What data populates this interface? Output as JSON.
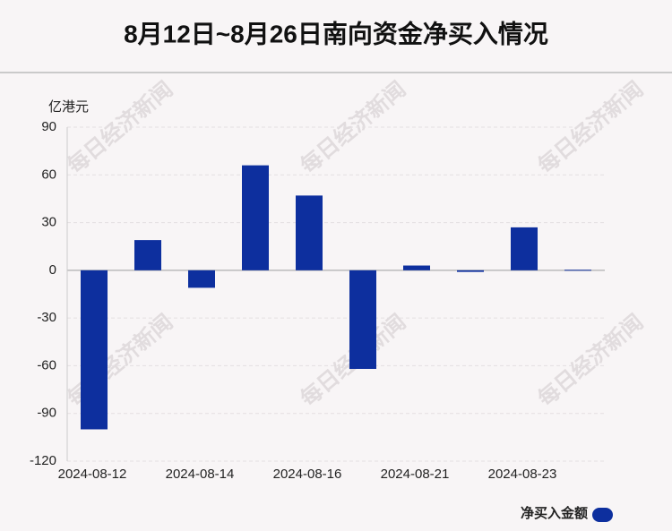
{
  "chart_data": {
    "type": "bar",
    "title": "8月12日~8月26日南向资金净买入情况",
    "y_axis_label": "亿港元",
    "watermark": "每日经济新闻",
    "categories": [
      "2024-08-12",
      null,
      "2024-08-14",
      null,
      "2024-08-16",
      null,
      "2024-08-21",
      null,
      "2024-08-23",
      null
    ],
    "series": [
      {
        "name": "净买入金额",
        "color": "#0d2f9e",
        "values": [
          -100,
          19,
          -11,
          66,
          47,
          -62,
          3,
          -1,
          27,
          0.3
        ]
      }
    ],
    "ylim": [
      -120,
      90
    ],
    "yticks": [
      90,
      60,
      30,
      0,
      -30,
      -60,
      -90,
      -120
    ],
    "grid": true,
    "legend": "bottom-right"
  }
}
